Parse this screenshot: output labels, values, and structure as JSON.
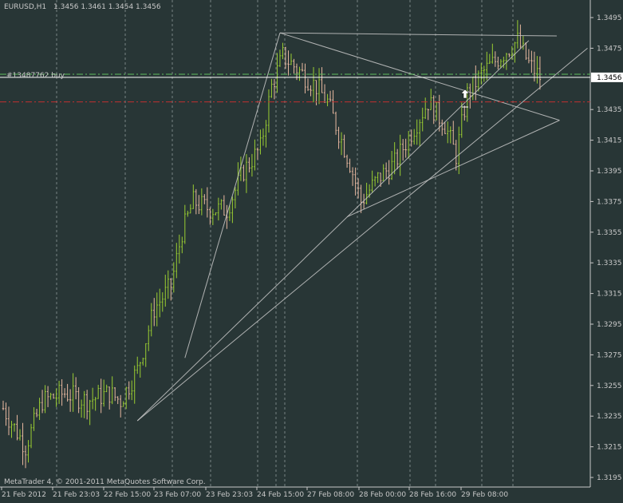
{
  "header": {
    "symbol": "EURUSD,H1",
    "ohlc": "1.3456 1.3461 1.3454 1.3456"
  },
  "order": {
    "label": "#13487762 buy"
  },
  "footer": {
    "copyright": "MetaTrader 4, © 2001-2011 MetaQuotes Software Corp."
  },
  "colors": {
    "background": "#283636",
    "bull": "#9acd32",
    "bear": "#e8b8a0",
    "grid": "#9aa5a5",
    "entry_line": "#5fbf5f",
    "stop_line": "#c03030",
    "price_line": "#ffffff",
    "trendline": "#c8c8c8"
  },
  "chart_data": {
    "type": "candlestick",
    "ylim": [
      1.3185,
      1.3515
    ],
    "y_ticks": [
      "1.3495",
      "1.3475",
      "1.3456",
      "1.3435",
      "1.3415",
      "1.3395",
      "1.3375",
      "1.3355",
      "1.3335",
      "1.3315",
      "1.3295",
      "1.3275",
      "1.3255",
      "1.3235",
      "1.3215",
      "1.3195"
    ],
    "current_price": "1.3456",
    "x_labels": [
      "21 Feb 2012",
      "21 Feb 23:03",
      "22 Feb 15:00",
      "23 Feb 07:00",
      "23 Feb 23:03",
      "24 Feb 15:00",
      "27 Feb 08:00",
      "28 Feb 00:00",
      "28 Feb 16:00",
      "29 Feb 08:00"
    ],
    "entry_price": 1.3458,
    "stop_price": 1.344,
    "close_path": [
      [
        0,
        1.324
      ],
      [
        8,
        1.3215
      ],
      [
        14,
        1.3245
      ],
      [
        22,
        1.325
      ],
      [
        30,
        1.3245
      ],
      [
        38,
        1.325
      ],
      [
        42,
        1.3245
      ],
      [
        48,
        1.3265
      ],
      [
        54,
        1.3305
      ],
      [
        60,
        1.332
      ],
      [
        64,
        1.3355
      ],
      [
        68,
        1.3375
      ],
      [
        74,
        1.337
      ],
      [
        80,
        1.337
      ],
      [
        86,
        1.3395
      ],
      [
        92,
        1.341
      ],
      [
        96,
        1.345
      ],
      [
        100,
        1.347
      ],
      [
        106,
        1.346
      ],
      [
        112,
        1.345
      ],
      [
        116,
        1.344
      ],
      [
        120,
        1.342
      ],
      [
        124,
        1.34
      ],
      [
        128,
        1.3375
      ],
      [
        134,
        1.339
      ],
      [
        140,
        1.34
      ],
      [
        146,
        1.342
      ],
      [
        152,
        1.344
      ],
      [
        158,
        1.3425
      ],
      [
        162,
        1.3405
      ],
      [
        166,
        1.3445
      ],
      [
        172,
        1.346
      ],
      [
        178,
        1.347
      ],
      [
        184,
        1.348
      ],
      [
        188,
        1.3465
      ],
      [
        192,
        1.3456
      ]
    ],
    "trendlines": [
      {
        "from": [
          65,
          1.3273
        ],
        "to": [
          99,
          1.3485
        ]
      },
      {
        "from": [
          99,
          1.3485
        ],
        "to": [
          199,
          1.3428
        ]
      },
      {
        "from": [
          99,
          1.3485
        ],
        "to": [
          198,
          1.3483
        ]
      },
      {
        "from": [
          123,
          1.3365
        ],
        "to": [
          199,
          1.3428
        ]
      },
      {
        "from": [
          48,
          1.3232
        ],
        "to": [
          209,
          1.3475
        ]
      },
      {
        "from": [
          48,
          1.3232
        ],
        "to": [
          188,
          1.348
        ]
      }
    ]
  }
}
